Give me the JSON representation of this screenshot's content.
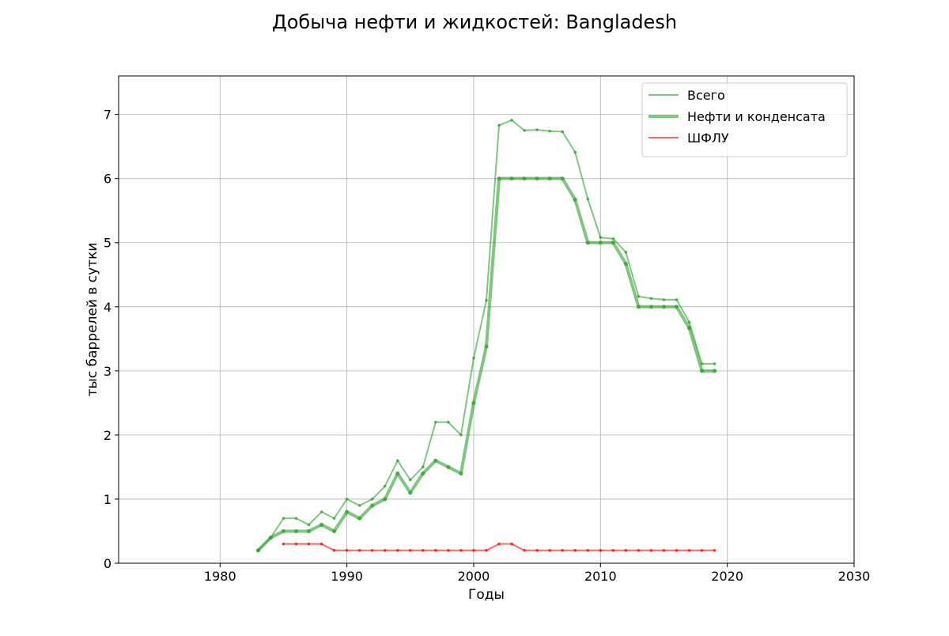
{
  "chart_data": {
    "type": "line",
    "title": "Добыча нефти и жидкостей: Bangladesh",
    "xlabel": "Годы",
    "ylabel": "тыс баррелей в сутки",
    "xlim": [
      1972,
      2030
    ],
    "ylim": [
      0,
      7.6
    ],
    "xticks": [
      1980,
      1990,
      2000,
      2010,
      2020,
      2030
    ],
    "yticks": [
      0,
      1,
      2,
      3,
      4,
      5,
      6,
      7
    ],
    "grid": true,
    "legend_position": "top-right",
    "series": [
      {
        "name": "Всего",
        "color": "#2ca02c",
        "line_width": 2,
        "marker_size": 1.8,
        "x": [
          1983,
          1984,
          1985,
          1986,
          1987,
          1988,
          1989,
          1990,
          1991,
          1992,
          1993,
          1994,
          1995,
          1996,
          1997,
          1998,
          1999,
          2000,
          2001,
          2002,
          2003,
          2004,
          2005,
          2006,
          2007,
          2008,
          2009,
          2010,
          2011,
          2012,
          2013,
          2014,
          2015,
          2016,
          2017,
          2018,
          2019
        ],
        "y": [
          0.2,
          0.4,
          0.7,
          0.7,
          0.6,
          0.8,
          0.7,
          1.0,
          0.9,
          1.0,
          1.2,
          1.6,
          1.3,
          1.5,
          2.2,
          2.2,
          2.0,
          3.2,
          4.1,
          6.83,
          6.91,
          6.75,
          6.76,
          6.74,
          6.73,
          6.41,
          5.68,
          5.08,
          5.06,
          4.85,
          4.16,
          4.13,
          4.11,
          4.11,
          3.76,
          3.11,
          3.11
        ]
      },
      {
        "name": "Нефти и конденсата",
        "color": "#2ca02c",
        "line_width": 4,
        "marker_size": 2.6,
        "x": [
          1983,
          1984,
          1985,
          1986,
          1987,
          1988,
          1989,
          1990,
          1991,
          1992,
          1993,
          1994,
          1995,
          1996,
          1997,
          1998,
          1999,
          2000,
          2001,
          2002,
          2003,
          2004,
          2005,
          2006,
          2007,
          2008,
          2009,
          2010,
          2011,
          2012,
          2013,
          2014,
          2015,
          2016,
          2017,
          2018,
          2019
        ],
        "y": [
          0.2,
          0.4,
          0.5,
          0.5,
          0.5,
          0.6,
          0.5,
          0.8,
          0.7,
          0.9,
          1.0,
          1.4,
          1.1,
          1.4,
          1.6,
          1.5,
          1.4,
          2.5,
          3.38,
          6.0,
          6.0,
          6.0,
          6.0,
          6.0,
          6.0,
          5.67,
          5.0,
          5.0,
          5.0,
          4.67,
          4.0,
          4.0,
          4.0,
          4.0,
          3.67,
          3.0,
          3.0
        ]
      },
      {
        "name": "ШФЛУ",
        "color": "#ff0000",
        "line_width": 2,
        "marker_size": 1.8,
        "x": [
          1985,
          1986,
          1987,
          1988,
          1989,
          1990,
          1991,
          1992,
          1993,
          1994,
          1995,
          1996,
          1997,
          1998,
          1999,
          2000,
          2001,
          2002,
          2003,
          2004,
          2005,
          2006,
          2007,
          2008,
          2009,
          2010,
          2011,
          2012,
          2013,
          2014,
          2015,
          2016,
          2017,
          2018,
          2019
        ],
        "y": [
          0.3,
          0.3,
          0.3,
          0.3,
          0.2,
          0.2,
          0.2,
          0.2,
          0.2,
          0.2,
          0.2,
          0.2,
          0.2,
          0.2,
          0.2,
          0.2,
          0.2,
          0.3,
          0.3,
          0.2,
          0.2,
          0.2,
          0.2,
          0.2,
          0.2,
          0.2,
          0.2,
          0.2,
          0.2,
          0.2,
          0.2,
          0.2,
          0.2,
          0.2,
          0.2
        ]
      }
    ]
  }
}
